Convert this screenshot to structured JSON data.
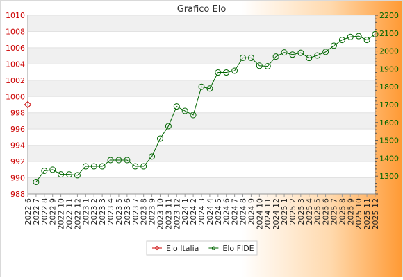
{
  "chart_data": {
    "type": "line",
    "title": "Grafico Elo",
    "legend_position": "bottom",
    "grid": true,
    "x": [
      "2022 6",
      "2022 7",
      "2022 8",
      "2022 9",
      "2022 10",
      "2022 11",
      "2022 12",
      "2023 1",
      "2023 2",
      "2023 3",
      "2023 4",
      "2023 5",
      "2023 6",
      "2023 7",
      "2023 8",
      "2023 9",
      "2023 10",
      "2023 11",
      "2023 12",
      "2024 1",
      "2024 2",
      "2024 3",
      "2024 4",
      "2024 5",
      "2024 6",
      "2024 7",
      "2024 8",
      "2024 9",
      "2024 10",
      "2024 11",
      "2024 12",
      "2025 1",
      "2025 2",
      "2025 3",
      "2025 4",
      "2025 5",
      "2025 6",
      "2025 7",
      "2025 8",
      "2025 9",
      "2025 10",
      "2025 11",
      "2025 12"
    ],
    "y_left": {
      "ticks": [
        988,
        990,
        992,
        994,
        996,
        998,
        1000,
        1002,
        1004,
        1006,
        1008,
        1010
      ],
      "range": [
        988,
        1010
      ],
      "color": "#cc0000"
    },
    "y_right": {
      "ticks": [
        1300,
        1400,
        1500,
        1600,
        1700,
        1800,
        1900,
        2000,
        2100,
        2200
      ],
      "range": [
        1200,
        2200
      ],
      "color": "#006600"
    },
    "series": [
      {
        "name": "Elo Italia",
        "axis": "left",
        "color": "#cc0000",
        "marker": "diamond",
        "values": [
          999,
          null,
          null,
          null,
          null,
          null,
          null,
          null,
          null,
          null,
          null,
          null,
          null,
          null,
          null,
          null,
          null,
          null,
          null,
          null,
          null,
          null,
          null,
          null,
          null,
          null,
          null,
          null,
          null,
          null,
          null,
          null,
          null,
          null,
          null,
          null,
          null,
          null,
          null,
          null,
          null,
          null,
          null
        ]
      },
      {
        "name": "Elo FIDE",
        "axis": "right",
        "color": "#006600",
        "marker": "circle",
        "values": [
          null,
          1268,
          1330,
          1336,
          1310,
          1310,
          1305,
          1355,
          1355,
          1355,
          1390,
          1390,
          1390,
          1355,
          1355,
          1410,
          1510,
          1580,
          1690,
          1665,
          1642,
          1800,
          1790,
          1880,
          1880,
          1890,
          1962,
          1962,
          1918,
          1915,
          1969,
          1992,
          1980,
          1990,
          1961,
          1975,
          1995,
          2030,
          2062,
          2079,
          2083,
          2062,
          2094
        ]
      }
    ]
  }
}
